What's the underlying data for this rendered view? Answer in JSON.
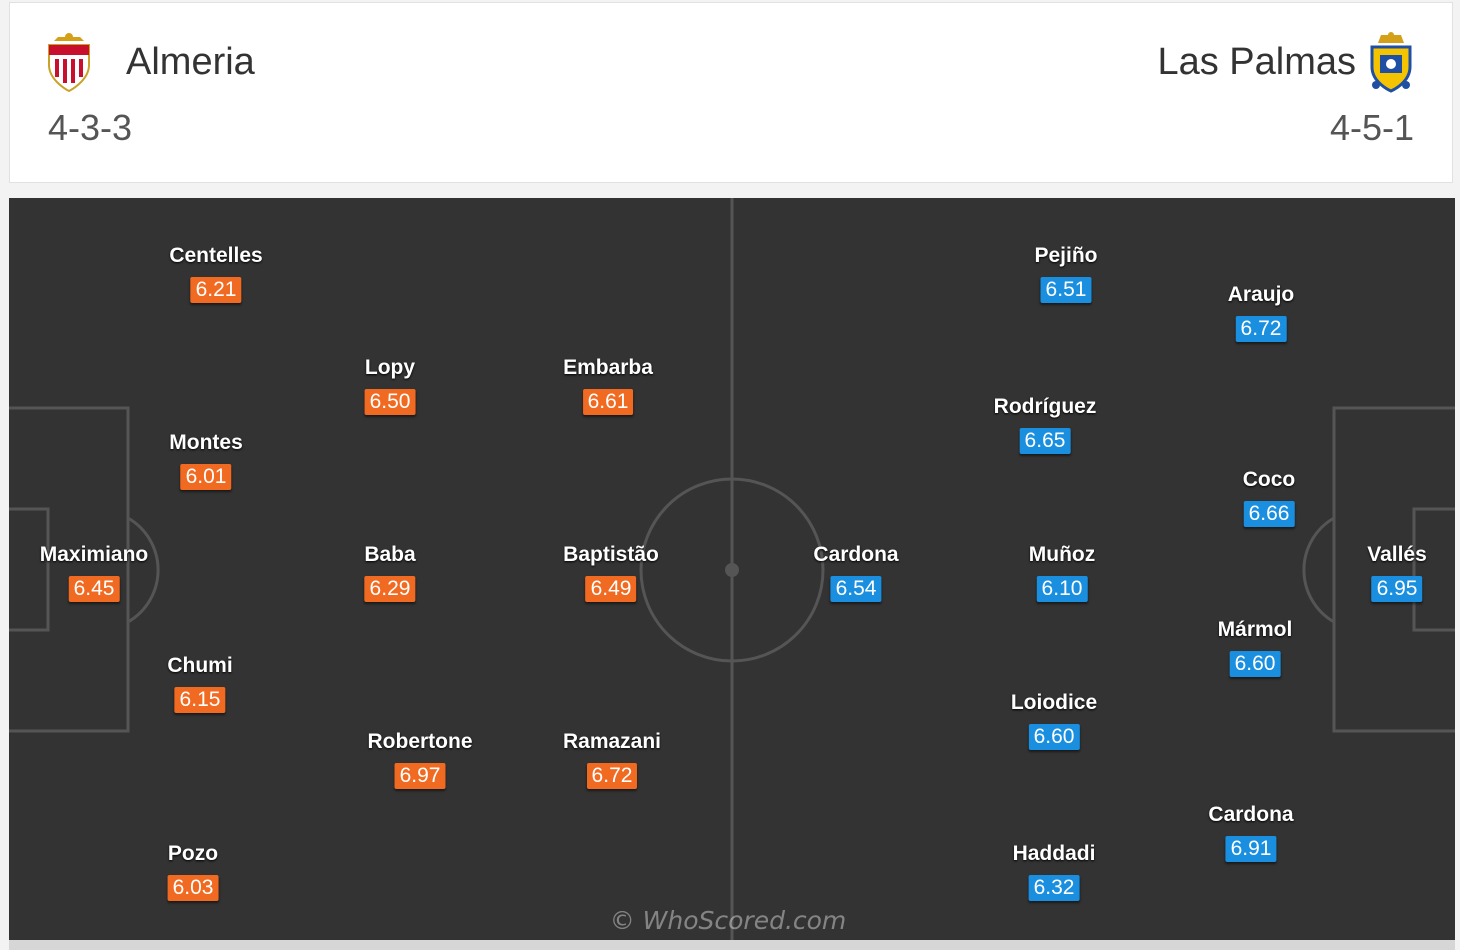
{
  "home": {
    "name": "Almeria",
    "formation": "4-3-3",
    "crest_icon": "almeria-crest",
    "color": "#f16a21",
    "players": [
      {
        "name": "Centelles",
        "rating": "6.21"
      },
      {
        "name": "Lopy",
        "rating": "6.50"
      },
      {
        "name": "Embarba",
        "rating": "6.61"
      },
      {
        "name": "Montes",
        "rating": "6.01"
      },
      {
        "name": "Maximiano",
        "rating": "6.45"
      },
      {
        "name": "Baba",
        "rating": "6.29"
      },
      {
        "name": "Baptistão",
        "rating": "6.49"
      },
      {
        "name": "Chumi",
        "rating": "6.15"
      },
      {
        "name": "Robertone",
        "rating": "6.97"
      },
      {
        "name": "Ramazani",
        "rating": "6.72"
      },
      {
        "name": "Pozo",
        "rating": "6.03"
      }
    ]
  },
  "away": {
    "name": "Las Palmas",
    "formation": "4-5-1",
    "crest_icon": "las-palmas-crest",
    "color": "#1a8fe0",
    "players": [
      {
        "name": "Pejiño",
        "rating": "6.51"
      },
      {
        "name": "Araujo",
        "rating": "6.72"
      },
      {
        "name": "Rodríguez",
        "rating": "6.65"
      },
      {
        "name": "Coco",
        "rating": "6.66"
      },
      {
        "name": "Cardona",
        "rating": "6.54"
      },
      {
        "name": "Muñoz",
        "rating": "6.10"
      },
      {
        "name": "Vallés",
        "rating": "6.95"
      },
      {
        "name": "Mármol",
        "rating": "6.60"
      },
      {
        "name": "Loiodice",
        "rating": "6.60"
      },
      {
        "name": "Cardona",
        "rating": "6.91"
      },
      {
        "name": "Haddadi",
        "rating": "6.32"
      }
    ]
  },
  "watermark": "© WhoScored.com",
  "pitch_color": "#333333"
}
